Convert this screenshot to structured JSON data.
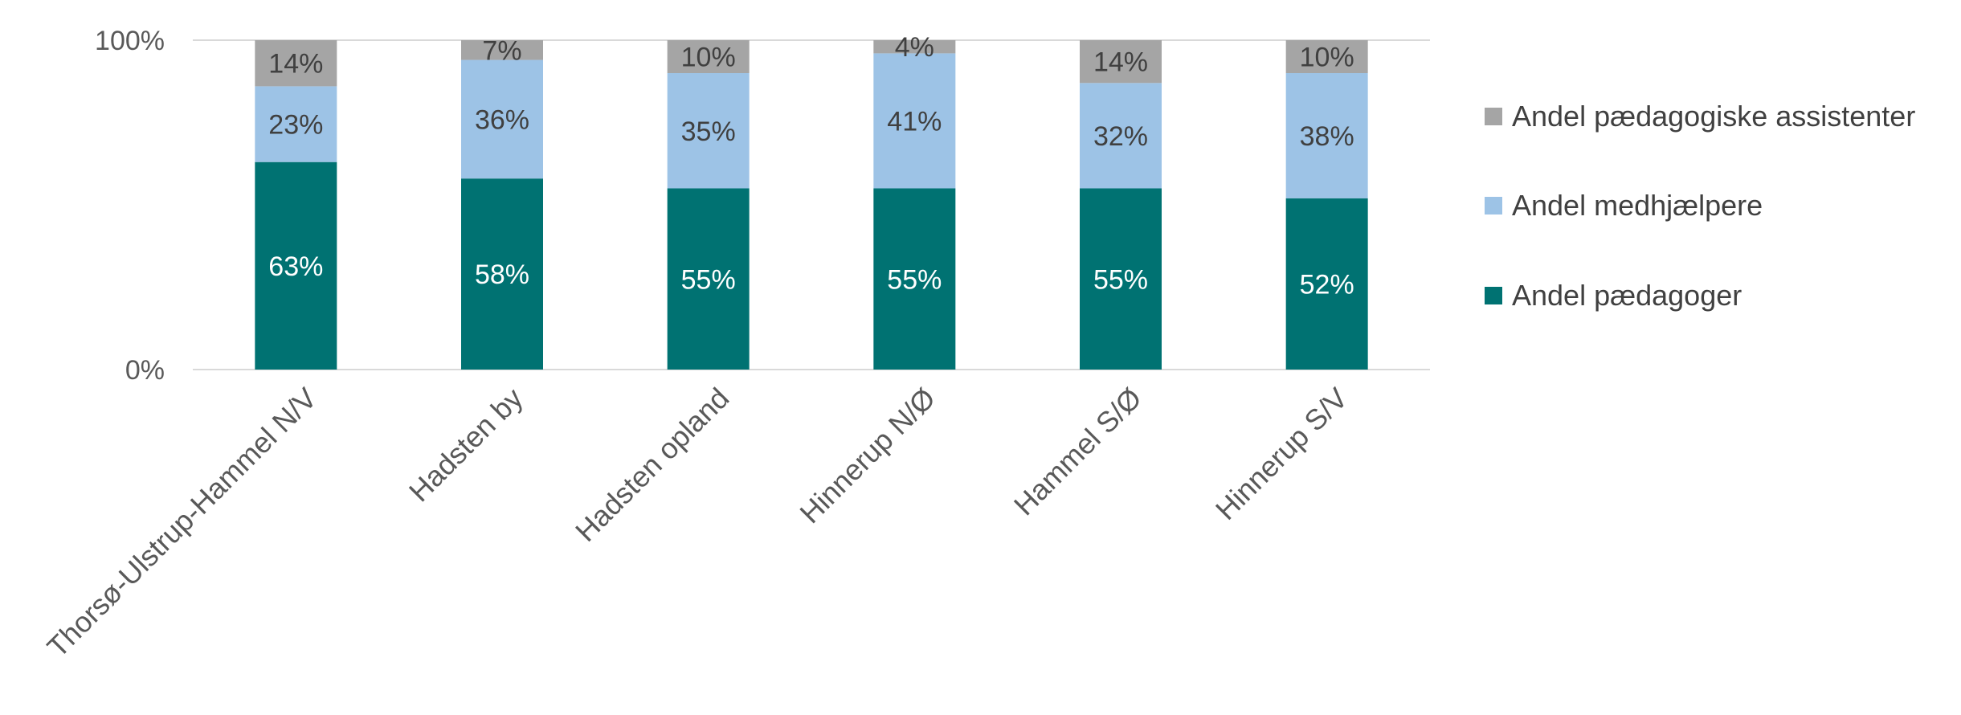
{
  "chart_data": {
    "type": "bar",
    "stacked": true,
    "categories": [
      "Thorsø-Ulstrup-Hammel N/V",
      "Hadsten by",
      "Hadsten opland",
      "Hinnerup N/Ø",
      "Hammel S/Ø",
      "Hinnerup S/V"
    ],
    "series": [
      {
        "name": "Andel pædagoger",
        "color": "#007272",
        "label_color": "#ffffff",
        "values": [
          63,
          58,
          55,
          55,
          55,
          52
        ]
      },
      {
        "name": "Andel medhjælpere",
        "color": "#9dc3e6",
        "label_color": "#404040",
        "values": [
          23,
          36,
          35,
          41,
          32,
          38
        ]
      },
      {
        "name": "Andel pædagogiske assistenter",
        "color": "#a5a5a5",
        "label_color": "#404040",
        "values": [
          14,
          7,
          10,
          4,
          14,
          10
        ]
      }
    ],
    "data_label_format": "%",
    "yticks": [
      "0%",
      "100%"
    ],
    "ylim": [
      0,
      100
    ],
    "legend_position": "right",
    "grid": false
  }
}
